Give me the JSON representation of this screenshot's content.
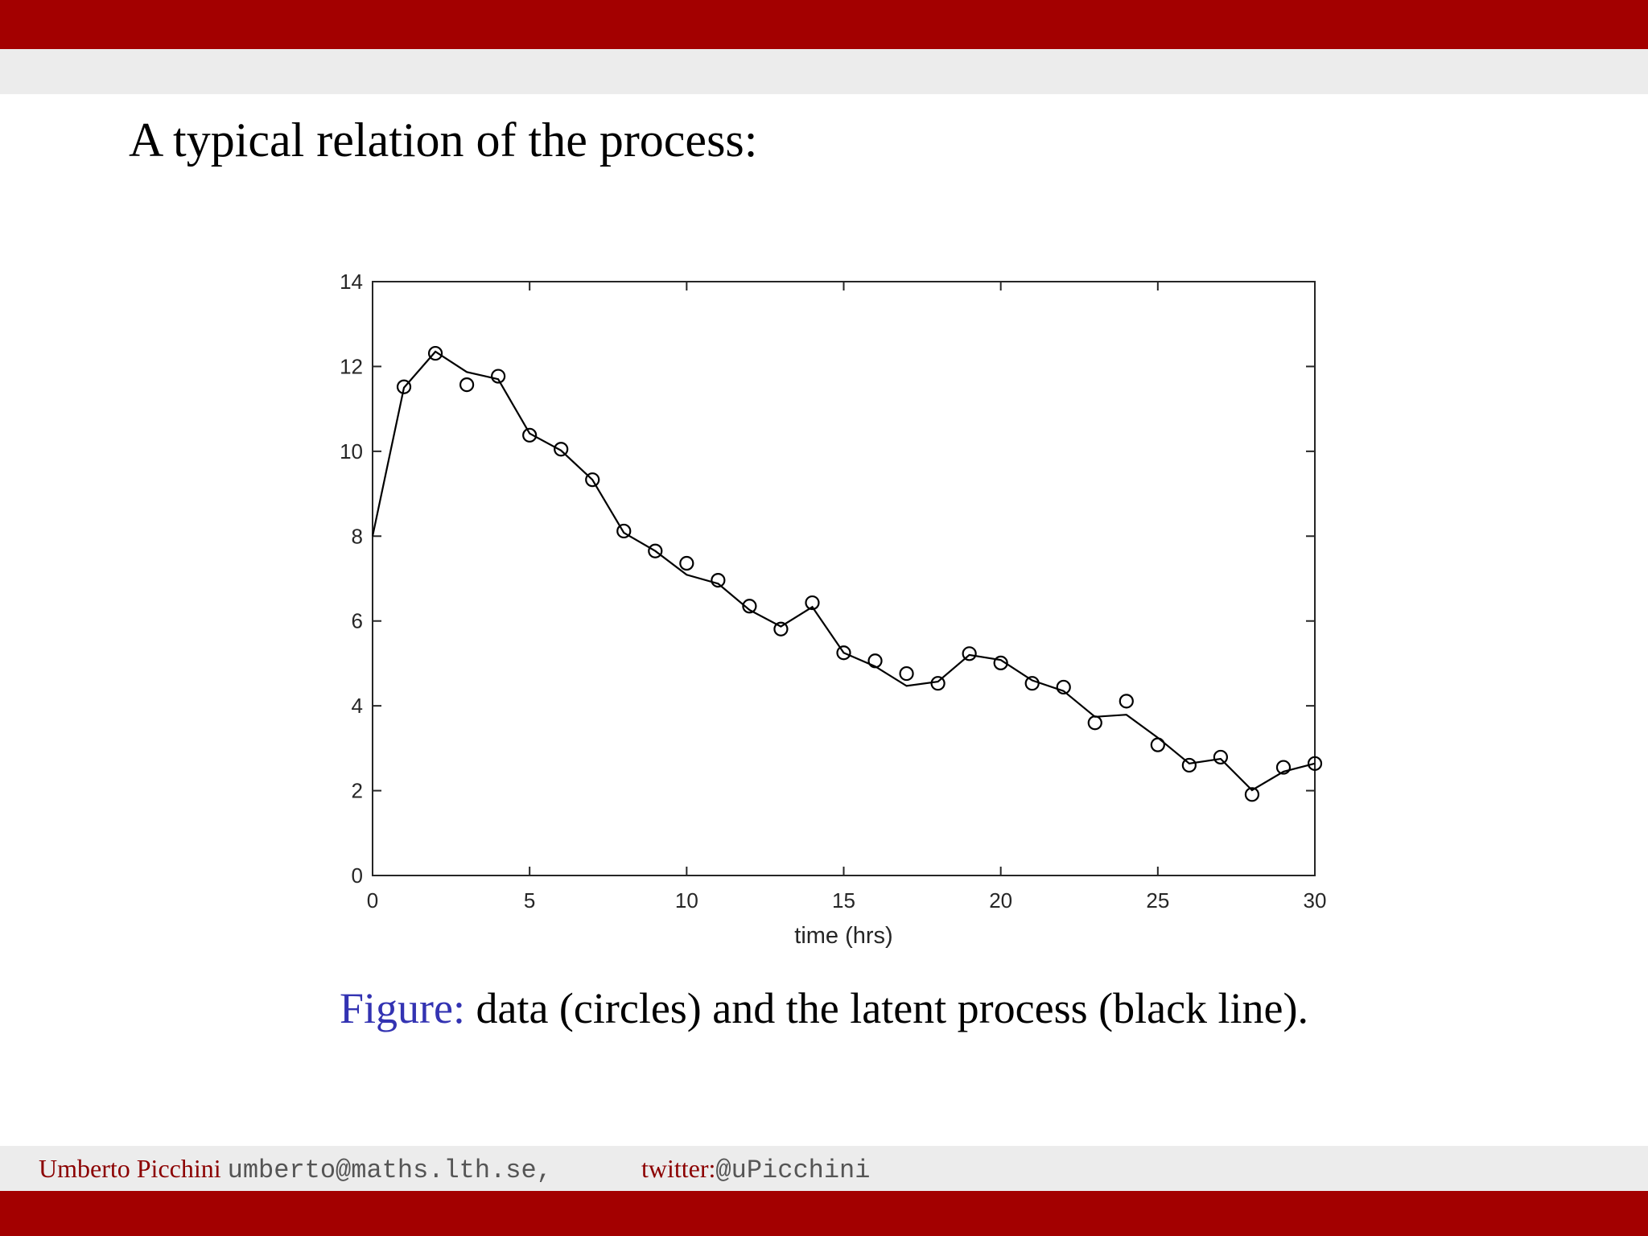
{
  "slide": {
    "title": "A typical relation of the process:",
    "caption_label": "Figure:",
    "caption_text": " data (circles) and the latent process (black line).",
    "footer_name": "Umberto Picchini",
    "footer_email": "umberto@maths.lth.se,",
    "footer_twitter_label": "twitter:",
    "footer_twitter_handle": "@uPicchini"
  },
  "colors": {
    "bar_red": "#a30000",
    "band_gray": "#ececec",
    "figure_label_blue": "#3333b2",
    "footer_text_red": "#8b0000"
  },
  "chart_data": {
    "type": "scatter",
    "title": "",
    "xlabel": "time (hrs)",
    "ylabel": "",
    "xlim": [
      0,
      30
    ],
    "ylim": [
      0,
      14
    ],
    "xticks": [
      0,
      5,
      10,
      15,
      20,
      25,
      30
    ],
    "yticks": [
      0,
      2,
      4,
      6,
      8,
      10,
      12,
      14
    ],
    "grid": false,
    "series": [
      {
        "kind": "markers",
        "marker": "circle",
        "x": [
          1,
          2,
          3,
          4,
          5,
          6,
          7,
          8,
          9,
          10,
          11,
          12,
          13,
          14,
          15,
          16,
          17,
          18,
          19,
          20,
          21,
          22,
          23,
          24,
          25,
          26,
          27,
          28,
          29,
          30
        ],
        "y": [
          11.52,
          12.31,
          11.57,
          11.77,
          10.38,
          10.05,
          9.33,
          8.12,
          7.65,
          7.36,
          6.96,
          6.35,
          5.81,
          6.43,
          5.25,
          5.06,
          4.76,
          4.53,
          5.23,
          5.01,
          4.53,
          4.44,
          3.6,
          4.11,
          3.08,
          2.6,
          2.79,
          1.91,
          2.55,
          2.64
        ]
      },
      {
        "kind": "line",
        "x": [
          0,
          1,
          2,
          3,
          4,
          5,
          6,
          7,
          8,
          9,
          10,
          11,
          12,
          13,
          14,
          15,
          16,
          17,
          18,
          19,
          20,
          21,
          22,
          23,
          24,
          25,
          26,
          27,
          28,
          29,
          30
        ],
        "y": [
          8.0,
          11.5,
          12.35,
          11.87,
          11.7,
          10.42,
          10.02,
          9.33,
          8.08,
          7.65,
          7.09,
          6.88,
          6.26,
          5.87,
          6.33,
          5.25,
          4.93,
          4.47,
          4.57,
          5.2,
          5.08,
          4.6,
          4.35,
          3.74,
          3.79,
          3.25,
          2.64,
          2.75,
          2.01,
          2.45,
          2.64
        ]
      }
    ]
  }
}
